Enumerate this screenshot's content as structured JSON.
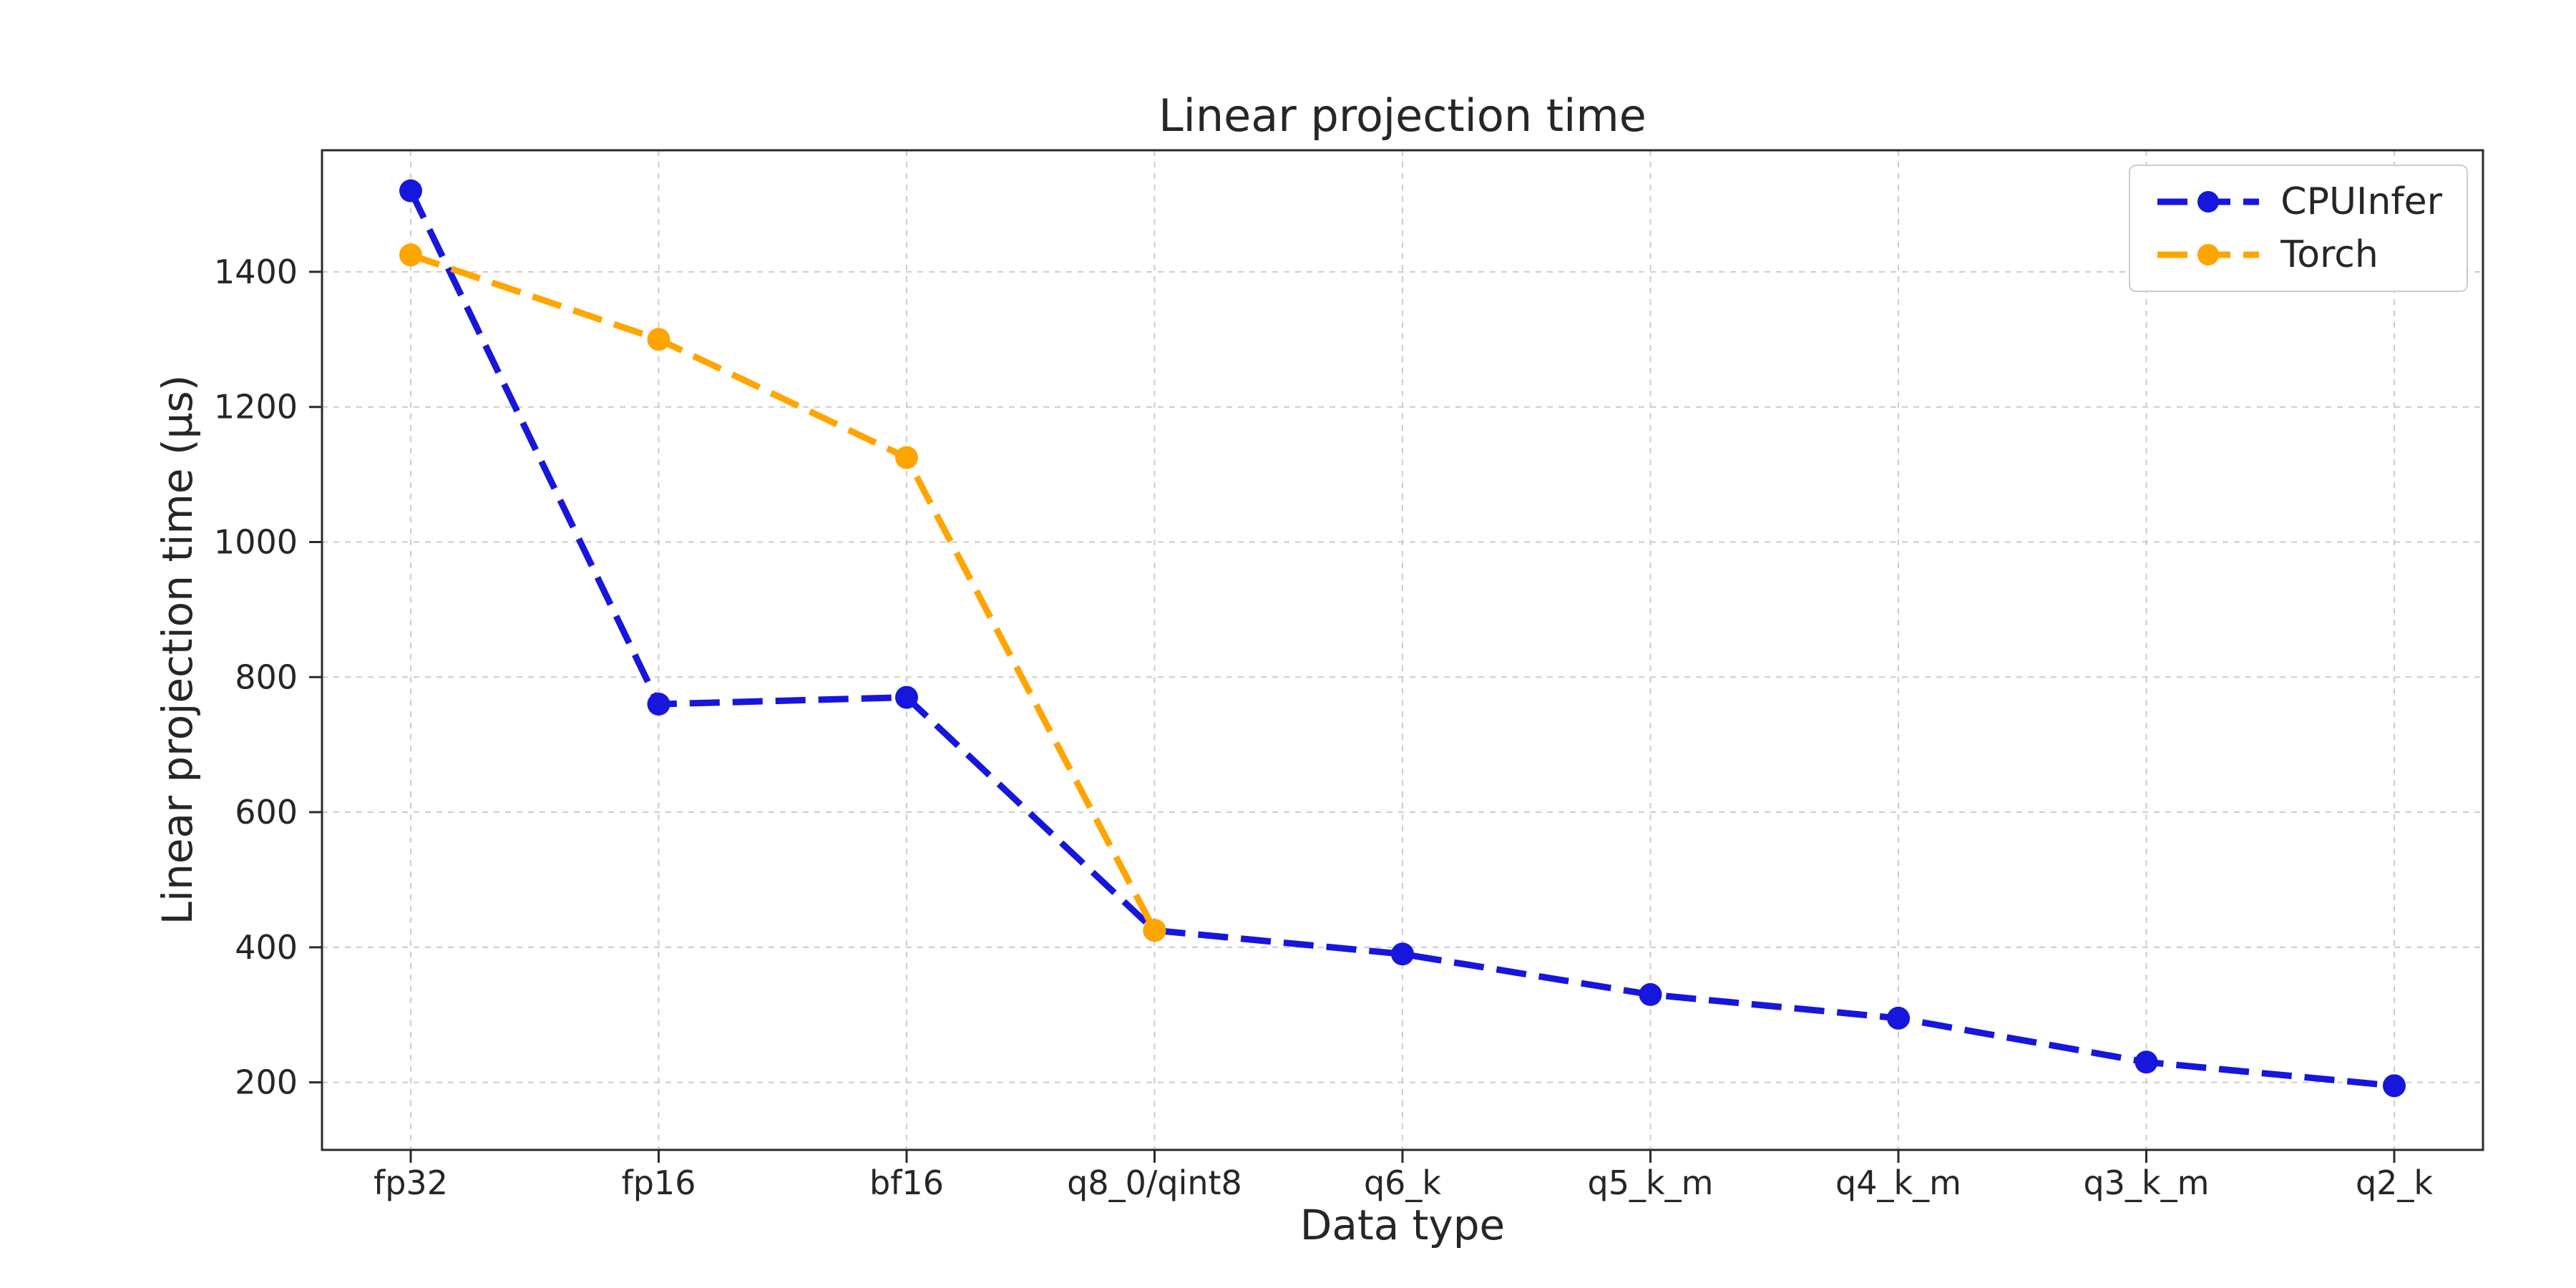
{
  "figure": {
    "background": "#ffffff",
    "text_color": "#262626",
    "grid_color": "#cccccc"
  },
  "chart_data": {
    "type": "line",
    "title": "Linear projection time",
    "xlabel": "Data type",
    "ylabel": "Linear projection time (µs)",
    "categories": [
      "fp32",
      "fp16",
      "bf16",
      "q8_0/qint8",
      "q6_k",
      "q5_k_m",
      "q4_k_m",
      "q3_k_m",
      "q2_k"
    ],
    "series": [
      {
        "name": "CPUInfer",
        "color": "#1616dc",
        "line_style": "dashed",
        "marker": "circle",
        "values": [
          1520,
          760,
          770,
          425,
          390,
          330,
          295,
          230,
          195
        ]
      },
      {
        "name": "Torch",
        "color": "#ffa500",
        "line_style": "dashed",
        "marker": "circle",
        "values": [
          1425,
          1300,
          1125,
          425,
          null,
          null,
          null,
          null,
          null
        ]
      }
    ],
    "yticks": [
      200,
      400,
      600,
      800,
      1000,
      1200,
      1400
    ],
    "ylim": [
      100,
      1580
    ],
    "grid": true,
    "legend": {
      "position": "upper right",
      "entries": [
        "CPUInfer",
        "Torch"
      ]
    }
  }
}
